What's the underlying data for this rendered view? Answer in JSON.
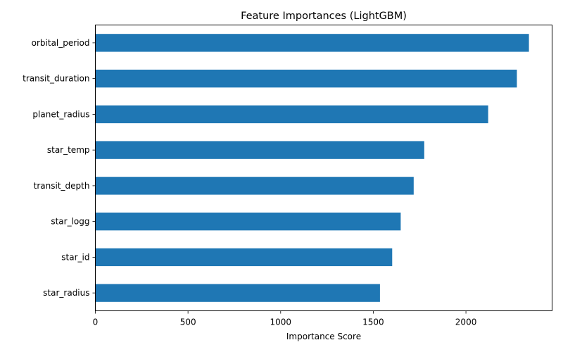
{
  "chart_data": {
    "type": "bar",
    "orientation": "horizontal",
    "title": "Feature Importances (LightGBM)",
    "xlabel": "Importance Score",
    "ylabel": "",
    "categories": [
      "orbital_period",
      "transit_duration",
      "planet_radius",
      "star_temp",
      "transit_depth",
      "star_logg",
      "star_id",
      "star_radius"
    ],
    "values": [
      2340,
      2275,
      2120,
      1775,
      1718,
      1648,
      1602,
      1536
    ],
    "xlim": [
      0,
      2465
    ],
    "xticks": [
      0,
      500,
      1000,
      1500,
      2000
    ],
    "grid": false,
    "colors": {
      "bar": "#1f77b4",
      "axis": "#000000"
    }
  }
}
